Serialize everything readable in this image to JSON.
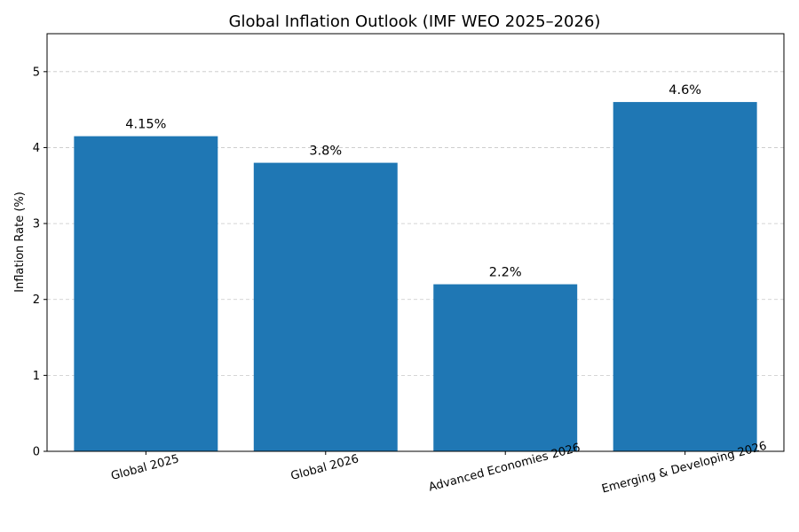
{
  "chart_data": {
    "type": "bar",
    "title": "Global Inflation Outlook (IMF WEO 2025–2026)",
    "xlabel": "",
    "ylabel": "Inflation Rate (%)",
    "categories": [
      "Global 2025",
      "Global 2026",
      "Advanced Economies 2026",
      "Emerging & Developing 2026"
    ],
    "values": [
      4.15,
      3.8,
      2.2,
      4.6
    ],
    "data_labels": [
      "4.15%",
      "3.8%",
      "2.2%",
      "4.6%"
    ],
    "yticks": [
      "0",
      "1",
      "2",
      "3",
      "4",
      "5"
    ],
    "ylim": [
      0,
      5.5
    ],
    "bar_color": "#1f77b4",
    "grid": "y-dashed",
    "x_tick_rotation": "15deg"
  }
}
